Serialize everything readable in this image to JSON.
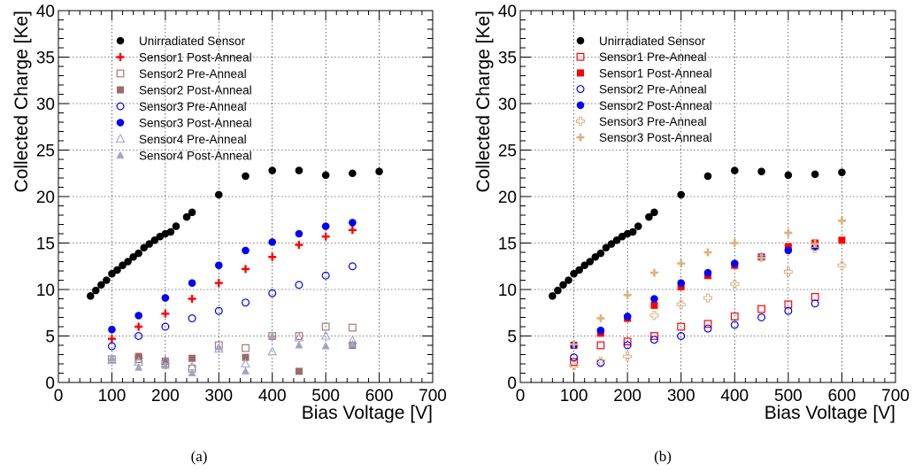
{
  "panels": [
    {
      "caption": "(a)",
      "xlabel": "Bias Voltage [V]",
      "ylabel": "Collected Charge [Ke]",
      "xlim": [
        0,
        700
      ],
      "ylim": [
        0,
        40
      ],
      "xticks": [
        "0",
        "100",
        "200",
        "300",
        "400",
        "500",
        "600",
        "700"
      ],
      "yticks": [
        "0",
        "5",
        "10",
        "15",
        "20",
        "25",
        "30",
        "35",
        "40"
      ],
      "grid": true,
      "legend_position": "top-left"
    },
    {
      "caption": "(b)",
      "xlabel": "Bias Voltage [V]",
      "ylabel": "Collected Charge [Ke]",
      "xlim": [
        0,
        700
      ],
      "ylim": [
        0,
        40
      ],
      "xticks": [
        "0",
        "100",
        "200",
        "300",
        "400",
        "500",
        "600",
        "700"
      ],
      "yticks": [
        "0",
        "5",
        "10",
        "15",
        "20",
        "25",
        "30",
        "35",
        "40"
      ],
      "grid": true,
      "legend_position": "top-left"
    }
  ],
  "chart_data": [
    {
      "type": "scatter",
      "xlabel": "Bias Voltage [V]",
      "ylabel": "Collected Charge [Ke]",
      "xlim": [
        0,
        700
      ],
      "ylim": [
        0,
        40
      ],
      "series": [
        {
          "name": "Unirradiated Sensor",
          "marker": "filled-circle",
          "color": "#000000",
          "x": [
            60,
            70,
            80,
            90,
            100,
            110,
            120,
            130,
            140,
            150,
            160,
            170,
            180,
            190,
            200,
            210,
            220,
            240,
            250,
            300,
            350,
            400,
            450,
            500,
            550,
            600
          ],
          "y": [
            9.3,
            9.9,
            10.5,
            11.0,
            11.7,
            12.1,
            12.6,
            13.0,
            13.5,
            13.9,
            14.5,
            14.9,
            15.3,
            15.7,
            16.0,
            16.2,
            16.8,
            17.8,
            18.3,
            20.2,
            22.2,
            22.8,
            22.8,
            22.3,
            22.5,
            22.7
          ]
        },
        {
          "name": "Sensor1 Post-Anneal",
          "marker": "plus",
          "color": "#ff0000",
          "x": [
            100,
            150,
            200,
            250,
            300,
            350,
            400,
            450,
            500,
            550
          ],
          "y": [
            4.7,
            6.0,
            7.4,
            9.0,
            10.7,
            12.2,
            13.5,
            14.8,
            15.7,
            16.4
          ]
        },
        {
          "name": "Sensor2 Pre-Anneal",
          "marker": "open-square",
          "color": "#a77a74",
          "x": [
            100,
            150,
            200,
            250,
            300,
            350,
            400,
            450,
            500,
            550
          ],
          "y": [
            2.5,
            2.5,
            2.0,
            1.5,
            4.0,
            3.7,
            5.0,
            5.0,
            6.0,
            5.9
          ]
        },
        {
          "name": "Sensor2 Post-Anneal",
          "marker": "filled-square",
          "color": "#9e6a66",
          "x": [
            150,
            200,
            250,
            350,
            450,
            550
          ],
          "y": [
            2.8,
            2.3,
            2.6,
            2.7,
            1.2,
            4.0
          ]
        },
        {
          "name": "Sensor3 Pre-Anneal",
          "marker": "open-circle",
          "color": "#0000ff",
          "x": [
            100,
            150,
            200,
            250,
            300,
            350,
            400,
            450,
            500,
            550
          ],
          "y": [
            3.9,
            5.0,
            6.0,
            6.9,
            7.7,
            8.6,
            9.6,
            10.5,
            11.5,
            12.5
          ]
        },
        {
          "name": "Sensor3 Post-Anneal",
          "marker": "filled-circle",
          "color": "#0000ff",
          "x": [
            100,
            150,
            200,
            250,
            300,
            350,
            400,
            450,
            500,
            550
          ],
          "y": [
            5.7,
            7.2,
            9.1,
            10.7,
            12.6,
            14.2,
            15.1,
            16.0,
            16.8,
            17.2
          ]
        },
        {
          "name": "Sensor4 Pre-Anneal",
          "marker": "open-triangle",
          "color": "#a3a3c8",
          "x": [
            100,
            150,
            200,
            250,
            300,
            350,
            400,
            450,
            500,
            550
          ],
          "y": [
            2.4,
            2.2,
            2.4,
            1.7,
            3.6,
            2.0,
            3.3,
            4.8,
            5.0,
            4.5
          ]
        },
        {
          "name": "Sensor4 Post-Anneal",
          "marker": "filled-triangle",
          "color": "#a3a3c8",
          "x": [
            100,
            150,
            200,
            250,
            300,
            350,
            400,
            450,
            500,
            550
          ],
          "y": [
            2.6,
            1.6,
            1.8,
            1.0,
            3.8,
            1.2,
            5.0,
            4.0,
            3.9,
            4.1
          ]
        }
      ]
    },
    {
      "type": "scatter",
      "xlabel": "Bias Voltage [V]",
      "ylabel": "Collected Charge [Ke]",
      "xlim": [
        0,
        700
      ],
      "ylim": [
        0,
        40
      ],
      "series": [
        {
          "name": "Unirradiated Sensor",
          "marker": "filled-circle",
          "color": "#000000",
          "x": [
            60,
            70,
            80,
            90,
            100,
            110,
            120,
            130,
            140,
            150,
            160,
            170,
            180,
            190,
            200,
            210,
            220,
            240,
            250,
            300,
            350,
            400,
            450,
            500,
            550,
            600
          ],
          "y": [
            9.3,
            9.9,
            10.5,
            11.0,
            11.7,
            12.1,
            12.6,
            13.0,
            13.5,
            13.9,
            14.5,
            14.9,
            15.3,
            15.7,
            16.0,
            16.2,
            16.8,
            17.8,
            18.3,
            20.2,
            22.2,
            22.8,
            22.7,
            22.3,
            22.4,
            22.6
          ]
        },
        {
          "name": "Sensor1 Pre-Anneal",
          "marker": "open-square",
          "color": "#ff0000",
          "x": [
            100,
            150,
            200,
            250,
            300,
            350,
            400,
            450,
            500,
            550
          ],
          "y": [
            2.2,
            4.0,
            4.4,
            5.0,
            6.0,
            6.3,
            7.1,
            7.9,
            8.4,
            9.2
          ]
        },
        {
          "name": "Sensor1 Post-Anneal",
          "marker": "filled-square",
          "color": "#ff0000",
          "x": [
            100,
            150,
            200,
            250,
            300,
            350,
            400,
            450,
            500,
            550,
            600
          ],
          "y": [
            4.0,
            5.3,
            6.9,
            8.3,
            10.3,
            11.5,
            12.6,
            13.5,
            14.6,
            15.0,
            15.3
          ]
        },
        {
          "name": "Sensor2 Pre-Anneal",
          "marker": "open-circle",
          "color": "#0000ff",
          "x": [
            100,
            150,
            200,
            250,
            300,
            350,
            400,
            450,
            500,
            550
          ],
          "y": [
            2.7,
            2.1,
            4.0,
            4.6,
            5.0,
            5.8,
            6.2,
            7.0,
            7.7,
            8.5
          ]
        },
        {
          "name": "Sensor2 Post-Anneal",
          "marker": "filled-circle",
          "color": "#0000ff",
          "x": [
            100,
            150,
            200,
            250,
            300,
            350,
            400,
            450,
            500,
            550
          ],
          "y": [
            4.0,
            5.6,
            7.1,
            9.0,
            10.7,
            11.8,
            12.8,
            13.5,
            14.2,
            14.6
          ]
        },
        {
          "name": "Sensor3 Pre-Anneal",
          "marker": "open-plus",
          "color": "#e0b07a",
          "x": [
            100,
            150,
            200,
            250,
            300,
            350,
            400,
            450,
            500,
            550,
            600
          ],
          "y": [
            1.8,
            2.3,
            2.8,
            7.2,
            8.4,
            9.1,
            10.6,
            13.5,
            11.9,
            14.4,
            12.6
          ]
        },
        {
          "name": "Sensor3 Post-Anneal",
          "marker": "filled-plus",
          "color": "#e0b07a",
          "x": [
            100,
            150,
            200,
            250,
            300,
            350,
            400,
            450,
            500,
            550,
            600
          ],
          "y": [
            4.1,
            6.9,
            9.4,
            11.8,
            12.8,
            14.0,
            15.0,
            13.4,
            16.1,
            14.9,
            17.4
          ]
        }
      ]
    }
  ]
}
